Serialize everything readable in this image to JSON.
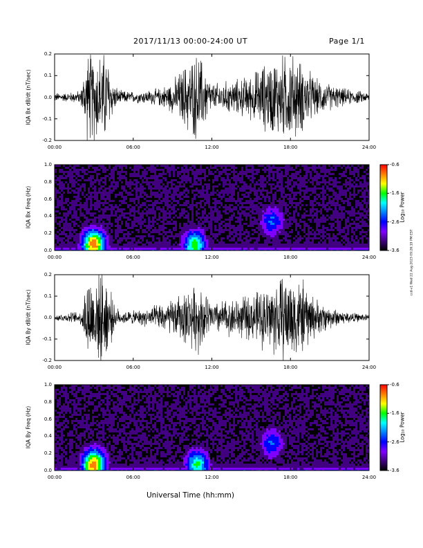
{
  "header": {
    "title": "2017/11/13  00:00-24:00 UT",
    "page": "Page 1/1"
  },
  "footer": {
    "xlabel": "Universal Time (hh:mm)"
  },
  "side_stamp": "ccd-v1 Wed 22 Aug 2023 09:26:19 PM EST",
  "colorbar": {
    "label": "Log₁₀ Power",
    "ticks": [
      "-0.6",
      "-1.6",
      "-2.6",
      "-3.6"
    ],
    "colors": [
      "#ff0000",
      "#ff8000",
      "#ffff00",
      "#00ff00",
      "#00ffff",
      "#0080ff",
      "#0000ff",
      "#8000ff",
      "#400080",
      "#000000"
    ]
  },
  "chart_data": [
    {
      "type": "line",
      "ylabel": "IQA Bx dB/dt (nT/sec)",
      "ylim": [
        -0.2,
        0.2
      ],
      "yticks": [
        "0.2",
        "0.1",
        "0.0",
        "-0.1",
        "-0.2"
      ],
      "xticks": [
        "00:00",
        "06:00",
        "12:00",
        "18:00",
        "24:00"
      ],
      "xlim_hours": [
        0,
        24
      ],
      "envelope": {
        "hours": [
          0,
          1,
          2,
          2.5,
          3,
          4,
          4.5,
          5,
          6,
          7,
          8,
          9,
          10,
          11,
          12,
          13,
          14,
          15,
          16,
          17,
          18,
          19,
          20,
          21,
          22,
          23,
          24
        ],
        "amplitude": [
          0.02,
          0.02,
          0.03,
          0.2,
          0.2,
          0.2,
          0.06,
          0.03,
          0.025,
          0.03,
          0.04,
          0.07,
          0.15,
          0.2,
          0.06,
          0.07,
          0.08,
          0.1,
          0.15,
          0.18,
          0.2,
          0.15,
          0.08,
          0.06,
          0.04,
          0.03,
          0.02
        ]
      }
    },
    {
      "type": "heatmap",
      "ylabel": "IQA Bx Freq (Hz)",
      "ylim": [
        0,
        1.0
      ],
      "yticks": [
        "1.0",
        "0.8",
        "0.6",
        "0.4",
        "0.2",
        "0.0"
      ],
      "xticks": [
        "00:00",
        "06:00",
        "12:00",
        "18:00",
        "24:00"
      ],
      "clim": [
        -3.6,
        -0.6
      ],
      "hotspots": [
        {
          "hour": 2.9,
          "freq": 0.08,
          "level": -0.9
        },
        {
          "hour": 10.6,
          "freq": 0.07,
          "level": -1.6
        },
        {
          "hour": 16.5,
          "freq": 0.35,
          "level": -2.4
        }
      ]
    },
    {
      "type": "line",
      "ylabel": "IQA By dB/dt (nT/sec)",
      "ylim": [
        -0.2,
        0.2
      ],
      "yticks": [
        "0.2",
        "0.1",
        "0.0",
        "-0.1",
        "-0.2"
      ],
      "xticks": [
        "00:00",
        "06:00",
        "12:00",
        "18:00",
        "24:00"
      ],
      "xlim_hours": [
        0,
        24
      ],
      "envelope": {
        "hours": [
          0,
          1,
          2,
          2.5,
          3,
          4,
          4.5,
          5,
          6,
          7,
          8,
          9,
          10,
          11,
          12,
          13,
          14,
          15,
          16,
          17,
          18,
          19,
          20,
          21,
          22,
          23,
          24
        ],
        "amplitude": [
          0.015,
          0.02,
          0.03,
          0.2,
          0.2,
          0.2,
          0.06,
          0.03,
          0.03,
          0.04,
          0.06,
          0.08,
          0.12,
          0.15,
          0.07,
          0.08,
          0.09,
          0.1,
          0.14,
          0.18,
          0.2,
          0.16,
          0.08,
          0.05,
          0.03,
          0.02,
          0.015
        ]
      }
    },
    {
      "type": "heatmap",
      "ylabel": "IQA By Freq (Hz)",
      "ylim": [
        0,
        1.0
      ],
      "yticks": [
        "1.0",
        "0.8",
        "0.6",
        "0.4",
        "0.2",
        "0.0"
      ],
      "xticks": [
        "00:00",
        "06:00",
        "12:00",
        "18:00",
        "24:00"
      ],
      "clim": [
        -3.6,
        -0.6
      ],
      "hotspots": [
        {
          "hour": 2.9,
          "freq": 0.08,
          "level": -0.9
        },
        {
          "hour": 10.8,
          "freq": 0.07,
          "level": -1.7
        },
        {
          "hour": 16.5,
          "freq": 0.33,
          "level": -2.4
        }
      ]
    }
  ]
}
